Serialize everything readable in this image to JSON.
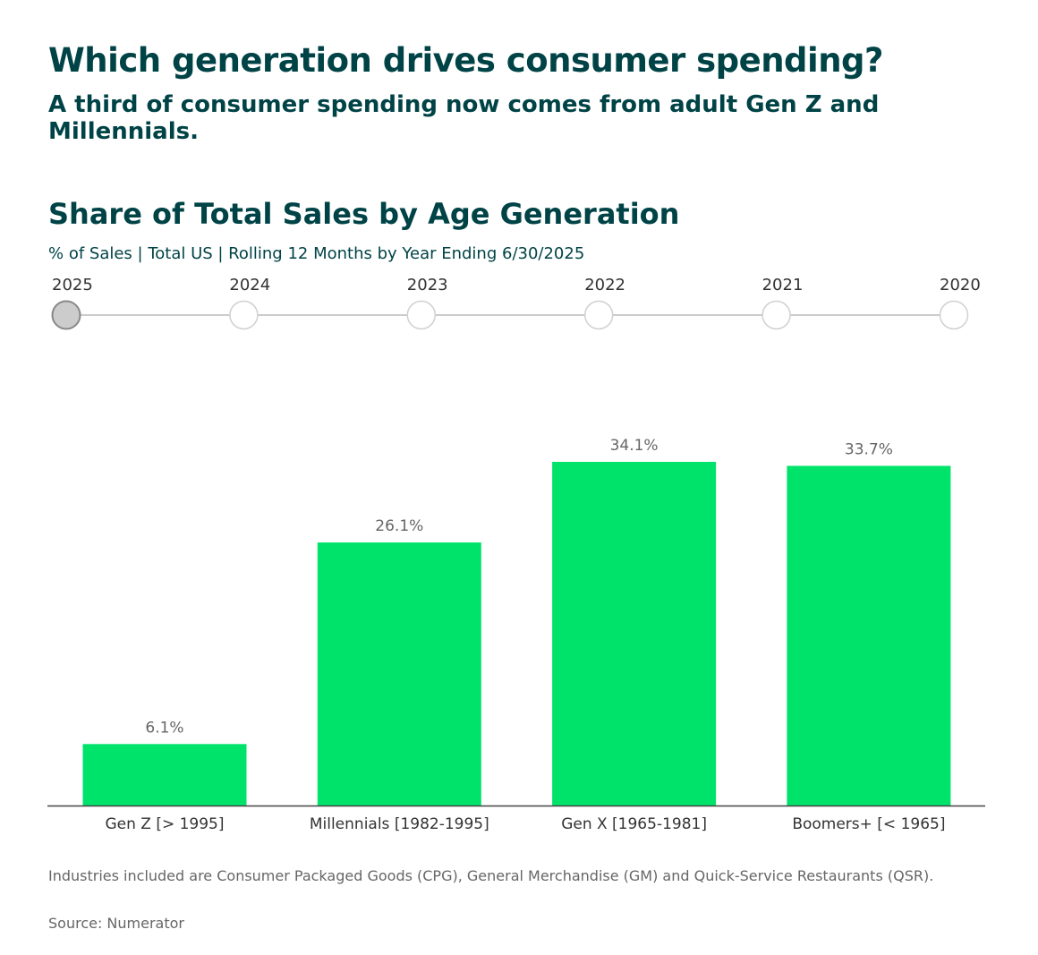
{
  "header": {
    "title": "Which generation drives consumer spending?",
    "subtitle": "A third of consumer spending now comes from adult Gen Z and Millennials."
  },
  "timeline": {
    "years": [
      "2025",
      "2024",
      "2023",
      "2022",
      "2021",
      "2020"
    ],
    "selected": "2025"
  },
  "chart_data": {
    "type": "bar",
    "title": "Share of Total Sales by Age Generation",
    "subtitle": "% of Sales | Total US | Rolling 12 Months by Year Ending 6/30/2025",
    "categories": [
      "Gen Z [> 1995]",
      "Millennials [1982-1995]",
      "Gen X [1965-1981]",
      "Boomers+ [< 1965]"
    ],
    "values": [
      6.1,
      26.1,
      34.1,
      33.7
    ],
    "labels": [
      "6.1%",
      "26.1%",
      "34.1%",
      "33.7%"
    ],
    "xlabel": "",
    "ylabel": "% of Sales",
    "ylim": [
      0,
      34.1
    ],
    "grid": false,
    "bar_color": "#00e36a"
  },
  "footer": {
    "note": "Industries included are Consumer Packaged Goods (CPG), General Merchandise (GM) and Quick-Service Restaurants (QSR).",
    "source": "Source: Numerator"
  }
}
